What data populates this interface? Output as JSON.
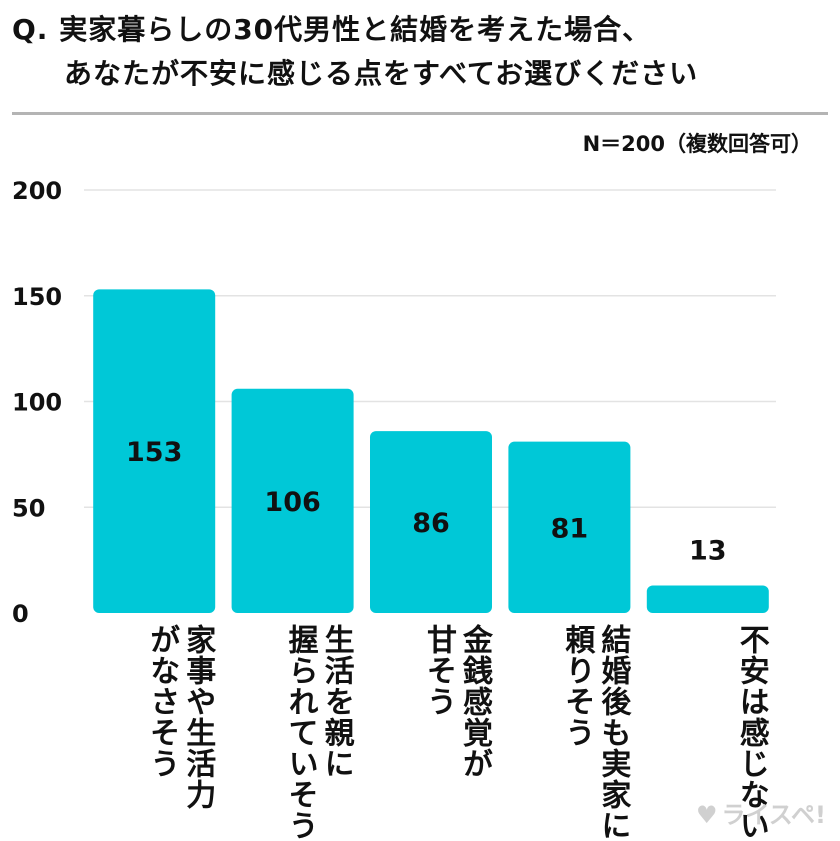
{
  "title": {
    "line1": "Q. 実家暮らしの30代男性と結婚を考えた場合、",
    "line2": "あなたが不安に感じる点をすべてお選びください"
  },
  "note": "N＝200（複数回答可）",
  "watermark": "ライスペ!",
  "colors": {
    "bar": "#00c8d7",
    "grid": "#e3e3e3",
    "rule": "#b4b4b4"
  },
  "chart_data": {
    "type": "bar",
    "categories": [
      "家事や生活力\nがなさそう",
      "生活を親に\n握られていそう",
      "金銭感覚が\n甘そう",
      "結婚後も実家に\n頼りそう",
      "不安は感じない"
    ],
    "values": [
      153,
      106,
      86,
      81,
      13
    ],
    "yticks": [
      0,
      50,
      100,
      150,
      200
    ],
    "ylim": [
      0,
      200
    ],
    "grid": true,
    "data_labels": true
  }
}
